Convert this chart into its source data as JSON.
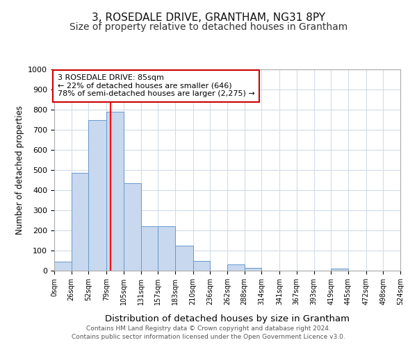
{
  "title": "3, ROSEDALE DRIVE, GRANTHAM, NG31 8PY",
  "subtitle": "Size of property relative to detached houses in Grantham",
  "xlabel": "Distribution of detached houses by size in Grantham",
  "ylabel": "Number of detached properties",
  "footnote1": "Contains HM Land Registry data © Crown copyright and database right 2024.",
  "footnote2": "Contains public sector information licensed under the Open Government Licence v3.0.",
  "bin_edges": [
    0,
    26,
    52,
    79,
    105,
    131,
    157,
    183,
    210,
    236,
    262,
    288,
    314,
    341,
    367,
    393,
    419,
    445,
    472,
    498,
    524
  ],
  "bar_heights": [
    45,
    485,
    750,
    790,
    435,
    220,
    220,
    125,
    50,
    0,
    30,
    15,
    0,
    0,
    0,
    0,
    10,
    0,
    0,
    0
  ],
  "bar_color": "#c8d8ee",
  "bar_edge_color": "#6699cc",
  "red_line_x": 85,
  "annotation_text_line1": "3 ROSEDALE DRIVE: 85sqm",
  "annotation_text_line2": "← 22% of detached houses are smaller (646)",
  "annotation_text_line3": "78% of semi-detached houses are larger (2,275) →",
  "annotation_box_color": "#ffffff",
  "annotation_box_edge_color": "#cc0000",
  "ylim": [
    0,
    1000
  ],
  "xlim": [
    0,
    524
  ],
  "tick_labels": [
    "0sqm",
    "26sqm",
    "52sqm",
    "79sqm",
    "105sqm",
    "131sqm",
    "157sqm",
    "183sqm",
    "210sqm",
    "236sqm",
    "262sqm",
    "288sqm",
    "314sqm",
    "341sqm",
    "367sqm",
    "393sqm",
    "419sqm",
    "445sqm",
    "472sqm",
    "498sqm",
    "524sqm"
  ],
  "grid_color": "#d0dce8",
  "background_color": "#ffffff",
  "title_fontsize": 11,
  "subtitle_fontsize": 10
}
